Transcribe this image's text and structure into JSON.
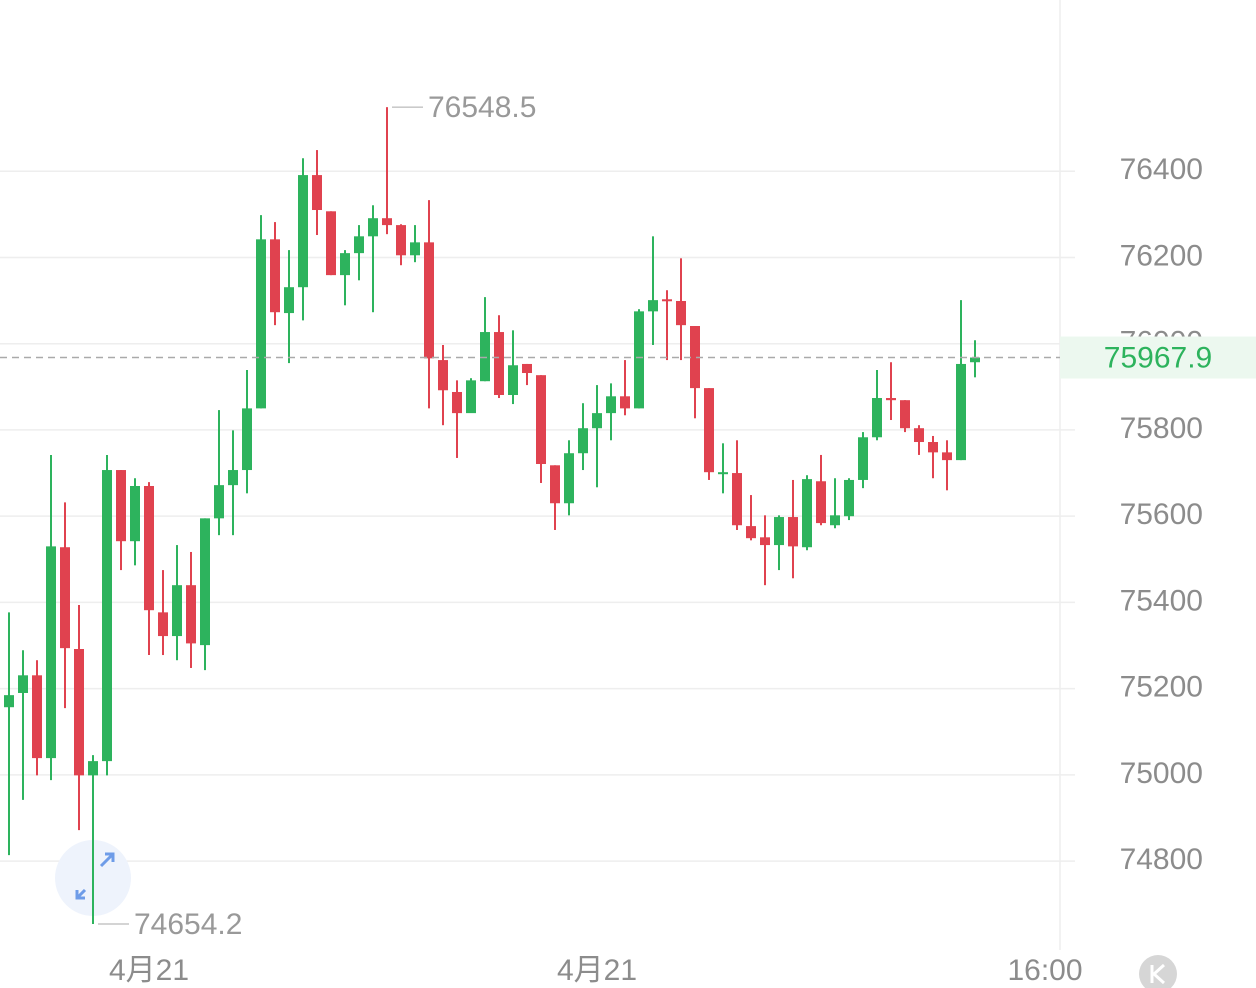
{
  "chart_data": {
    "type": "candlestick",
    "open": [
      75157,
      75190,
      75231,
      75039,
      75528,
      75292,
      74999,
      75032,
      75707,
      75542,
      75670,
      75377,
      75322,
      75440,
      75301,
      75595,
      75672,
      75707,
      75850,
      76242,
      76071,
      76131,
      76391,
      76307,
      76159,
      76210,
      76249,
      76291,
      76275,
      76205,
      76235,
      75962,
      75888,
      75839,
      75913,
      76027,
      75881,
      75953,
      75927,
      75718,
      75630,
      75746,
      75804,
      75839,
      75878,
      75850,
      76075,
      76103,
      76099,
      76041,
      75897,
      75700,
      75700,
      75577,
      75551,
      75533,
      75598,
      75528,
      75681,
      75579,
      75600,
      75684,
      75783,
      75874,
      75869,
      75804,
      75772,
      75748,
      75730,
      75957
    ],
    "high": [
      75377,
      75289,
      75266,
      75742,
      75632,
      75394,
      75046,
      75742,
      75707,
      75688,
      75679,
      75475,
      75533,
      75517,
      75595,
      75846,
      75799,
      75939,
      76298,
      76282,
      76217,
      76430,
      76449,
      76307,
      76217,
      76275,
      76321,
      76548.5,
      76277,
      76275,
      76333,
      75997,
      75915,
      75920,
      76108,
      76066,
      76031,
      75953,
      75927,
      75718,
      75776,
      75862,
      75904,
      75908,
      75962,
      76080,
      76249,
      76124,
      76198,
      76041,
      75897,
      75769,
      75776,
      75649,
      75602,
      75602,
      75684,
      75695,
      75742,
      75688,
      75688,
      75795,
      75939,
      75957,
      75869,
      75811,
      75786,
      75776,
      76101,
      76008
    ],
    "low": [
      74814,
      74942,
      74999,
      74988,
      75155,
      74872,
      74654.2,
      74999,
      75475,
      75486,
      75278,
      75278,
      75266,
      75248,
      75243,
      75556,
      75556,
      75653,
      75850,
      76043,
      75955,
      76054,
      76252,
      76159,
      76089,
      76147,
      76073,
      76254,
      76182,
      76189,
      75850,
      75811,
      75735,
      75841,
      75913,
      75874,
      75860,
      75904,
      75677,
      75568,
      75602,
      75707,
      75667,
      75776,
      75834,
      75850,
      75997,
      75962,
      75962,
      75827,
      75684,
      75653,
      75568,
      75544,
      75440,
      75475,
      75456,
      75521,
      75579,
      75572,
      75591,
      75665,
      75776,
      75823,
      75795,
      75742,
      75688,
      75660,
      75730,
      75922
    ],
    "close": [
      75185,
      75231,
      75039,
      75530,
      75294,
      74999,
      75032,
      75707,
      75542,
      75670,
      75382,
      75322,
      75440,
      75305,
      75595,
      75672,
      75707,
      75850,
      76242,
      76073,
      76131,
      76391,
      76310,
      76159,
      76210,
      76249,
      76291,
      76275,
      76205,
      76235,
      75966,
      75892,
      75839,
      75915,
      76027,
      75881,
      75950,
      75932,
      75721,
      75630,
      75746,
      75804,
      75839,
      75878,
      75850,
      76075,
      76101,
      76099,
      76043,
      75897,
      75702,
      75702,
      75579,
      75549,
      75533,
      75598,
      75530,
      75686,
      75584,
      75602,
      75684,
      75783,
      75874,
      75869,
      75804,
      75772,
      75748,
      75730,
      75953,
      75967.9
    ],
    "up_color": "#2db35d",
    "down_color": "#e0424f",
    "ylim": [
      74594,
      76797
    ],
    "yticks": [
      74800,
      75000,
      75200,
      75400,
      75600,
      75800,
      76000,
      76200,
      76400
    ],
    "xticks": [
      {
        "value": 10,
        "label": "4月21"
      },
      {
        "value": 42,
        "label": "4月21"
      },
      {
        "value": 74,
        "label": "16:00"
      }
    ],
    "grid": true
  }
}
